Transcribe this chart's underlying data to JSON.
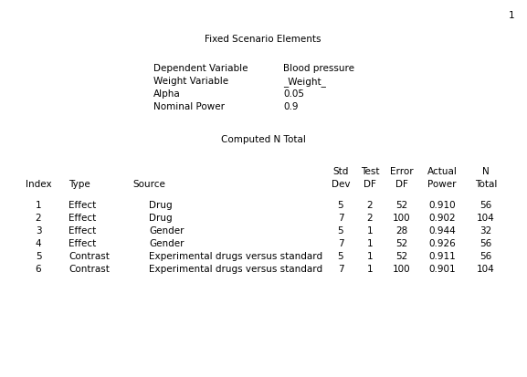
{
  "page_number": "1",
  "section1_title": "Fixed Scenario Elements",
  "fixed_elements": [
    {
      "label": "Dependent Variable",
      "value": "Blood pressure"
    },
    {
      "label": "Weight Variable",
      "value": "_Weight_"
    },
    {
      "label": "Alpha",
      "value": "0.05"
    },
    {
      "label": "Nominal Power",
      "value": "0.9"
    }
  ],
  "section2_title": "Computed N Total",
  "rows": [
    {
      "index": "1",
      "type": "Effect",
      "source": "Drug",
      "std_dev": "5",
      "test_df": "2",
      "error_df": "52",
      "actual_power": "0.910",
      "n_total": "56"
    },
    {
      "index": "2",
      "type": "Effect",
      "source": "Drug",
      "std_dev": "7",
      "test_df": "2",
      "error_df": "100",
      "actual_power": "0.902",
      "n_total": "104"
    },
    {
      "index": "3",
      "type": "Effect",
      "source": "Gender",
      "std_dev": "5",
      "test_df": "1",
      "error_df": "28",
      "actual_power": "0.944",
      "n_total": "32"
    },
    {
      "index": "4",
      "type": "Effect",
      "source": "Gender",
      "std_dev": "7",
      "test_df": "1",
      "error_df": "52",
      "actual_power": "0.926",
      "n_total": "56"
    },
    {
      "index": "5",
      "type": "Contrast",
      "source": "Experimental drugs versus standard",
      "std_dev": "5",
      "test_df": "1",
      "error_df": "52",
      "actual_power": "0.911",
      "n_total": "56"
    },
    {
      "index": "6",
      "type": "Contrast",
      "source": "Experimental drugs versus standard",
      "std_dev": "7",
      "test_df": "1",
      "error_df": "100",
      "actual_power": "0.901",
      "n_total": "104"
    }
  ],
  "bg_color": "#ffffff",
  "font_family": "Courier New",
  "font_size": 7.5,
  "fig_width": 5.77,
  "fig_height": 4.14,
  "dpi": 100
}
